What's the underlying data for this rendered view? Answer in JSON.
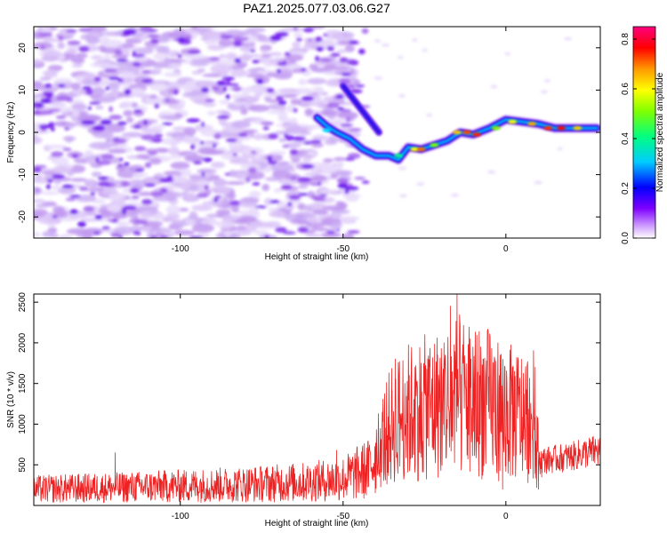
{
  "figure": {
    "title": "PAZ1.2025.077.03.06.G27"
  },
  "chart_data": [
    {
      "type": "heatmap",
      "xlabel": "Height of straight line (km)",
      "ylabel": "Frequency (Hz)",
      "xlim": [
        -145,
        29
      ],
      "ylim": [
        -25,
        25
      ],
      "xticks": [
        -100,
        -50,
        0
      ],
      "yticks": [
        -20,
        -10,
        0,
        10,
        20
      ],
      "colorbar": {
        "label": "Normalized spectral amplitude",
        "range": [
          0,
          0.85
        ],
        "ticks": [
          0.0,
          0.2,
          0.4,
          0.6,
          0.8
        ]
      },
      "signal_trace": [
        {
          "x": -58,
          "y": 3.5
        },
        {
          "x": -55,
          "y": 1.5
        },
        {
          "x": -52,
          "y": 0
        },
        {
          "x": -48,
          "y": -1.5
        },
        {
          "x": -44,
          "y": -4
        },
        {
          "x": -40,
          "y": -5.5
        },
        {
          "x": -36,
          "y": -5.5
        },
        {
          "x": -33,
          "y": -6.5
        },
        {
          "x": -30,
          "y": -3.5
        },
        {
          "x": -26,
          "y": -4
        },
        {
          "x": -22,
          "y": -3
        },
        {
          "x": -18,
          "y": -2
        },
        {
          "x": -14,
          "y": 0
        },
        {
          "x": -10,
          "y": -0.5
        },
        {
          "x": -5,
          "y": 1
        },
        {
          "x": 0,
          "y": 3
        },
        {
          "x": 5,
          "y": 2.5
        },
        {
          "x": 10,
          "y": 2
        },
        {
          "x": 15,
          "y": 1
        },
        {
          "x": 20,
          "y": 1
        },
        {
          "x": 28,
          "y": 1
        }
      ]
    },
    {
      "type": "line",
      "xlabel": "Height of straight line (km)",
      "ylabel": "SNR (10 * v/v)",
      "xlim": [
        -145,
        29
      ],
      "ylim": [
        0,
        2600
      ],
      "xticks": [
        -100,
        -50,
        0
      ],
      "yticks": [
        500,
        1000,
        1500,
        2000,
        2500
      ],
      "color": "#ee2222",
      "series": [
        {
          "envelope": [
            {
              "x": -145,
              "y": 200
            },
            {
              "x": -120,
              "y": 220
            },
            {
              "x": -100,
              "y": 240
            },
            {
              "x": -80,
              "y": 260
            },
            {
              "x": -60,
              "y": 290
            },
            {
              "x": -50,
              "y": 330
            },
            {
              "x": -42,
              "y": 450
            },
            {
              "x": -38,
              "y": 800
            },
            {
              "x": -35,
              "y": 1000
            },
            {
              "x": -30,
              "y": 1150
            },
            {
              "x": -25,
              "y": 1200
            },
            {
              "x": -20,
              "y": 1250
            },
            {
              "x": -15,
              "y": 1350
            },
            {
              "x": -10,
              "y": 1300
            },
            {
              "x": -5,
              "y": 1250
            },
            {
              "x": 0,
              "y": 1150
            },
            {
              "x": 5,
              "y": 1100
            },
            {
              "x": 9,
              "y": 1100
            },
            {
              "x": 10,
              "y": 550
            },
            {
              "x": 15,
              "y": 570
            },
            {
              "x": 20,
              "y": 600
            },
            {
              "x": 25,
              "y": 650
            },
            {
              "x": 29,
              "y": 680
            }
          ],
          "peaks": [
            {
              "x": -120,
              "y": 650
            },
            {
              "x": -58,
              "y": 500
            },
            {
              "x": -52,
              "y": 680
            },
            {
              "x": -35,
              "y": 1150
            },
            {
              "x": -34,
              "y": 1800
            },
            {
              "x": -31,
              "y": 1500
            },
            {
              "x": -28,
              "y": 1700
            },
            {
              "x": -26,
              "y": 1750
            },
            {
              "x": -24,
              "y": 1800
            },
            {
              "x": -21,
              "y": 1850
            },
            {
              "x": -19,
              "y": 2000
            },
            {
              "x": -17,
              "y": 2450
            },
            {
              "x": -15,
              "y": 2600
            },
            {
              "x": -13,
              "y": 2150
            },
            {
              "x": -11,
              "y": 1950
            },
            {
              "x": -7,
              "y": 1800
            },
            {
              "x": -6,
              "y": 1650
            },
            {
              "x": -2,
              "y": 1600
            },
            {
              "x": 2,
              "y": 1700
            },
            {
              "x": 6,
              "y": 1600
            },
            {
              "x": 9,
              "y": 1700
            }
          ],
          "dips": [
            {
              "x": -1,
              "y": 200
            },
            {
              "x": 0,
              "y": 420
            },
            {
              "x": 10,
              "y": 200
            },
            {
              "x": 11,
              "y": 350
            }
          ]
        }
      ]
    }
  ]
}
